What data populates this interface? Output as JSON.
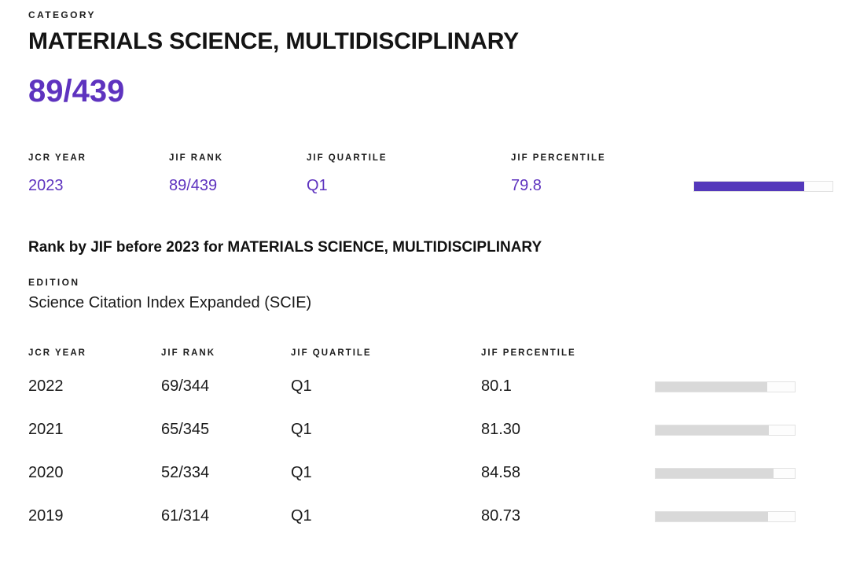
{
  "colors": {
    "accent_purple_text": "#5e33bf",
    "accent_purple_bar": "#5438bb",
    "gray_bar": "#d9d9d9",
    "bar_track_border": "#e2e2e2"
  },
  "category": {
    "label": "CATEGORY",
    "title": "MATERIALS SCIENCE, MULTIDISCIPLINARY",
    "rank": "89/439"
  },
  "current": {
    "columns": {
      "year": "JCR YEAR",
      "rank": "JIF RANK",
      "quartile": "JIF QUARTILE",
      "percentile": "JIF PERCENTILE"
    },
    "row": {
      "year": "2023",
      "rank": "89/439",
      "quartile": "Q1",
      "percentile": "79.8",
      "percentile_pct": 79.8
    }
  },
  "history": {
    "heading": "Rank by JIF before 2023 for MATERIALS SCIENCE, MULTIDISCIPLINARY",
    "edition_label": "EDITION",
    "edition_value": "Science Citation Index Expanded (SCIE)",
    "columns": {
      "year": "JCR YEAR",
      "rank": "JIF RANK",
      "quartile": "JIF QUARTILE",
      "percentile": "JIF PERCENTILE"
    },
    "rows": [
      {
        "year": "2022",
        "rank": "69/344",
        "quartile": "Q1",
        "percentile": "80.1",
        "percentile_pct": 80.1
      },
      {
        "year": "2021",
        "rank": "65/345",
        "quartile": "Q1",
        "percentile": "81.30",
        "percentile_pct": 81.3
      },
      {
        "year": "2020",
        "rank": "52/334",
        "quartile": "Q1",
        "percentile": "84.58",
        "percentile_pct": 84.58
      },
      {
        "year": "2019",
        "rank": "61/314",
        "quartile": "Q1",
        "percentile": "80.73",
        "percentile_pct": 80.73
      }
    ]
  }
}
